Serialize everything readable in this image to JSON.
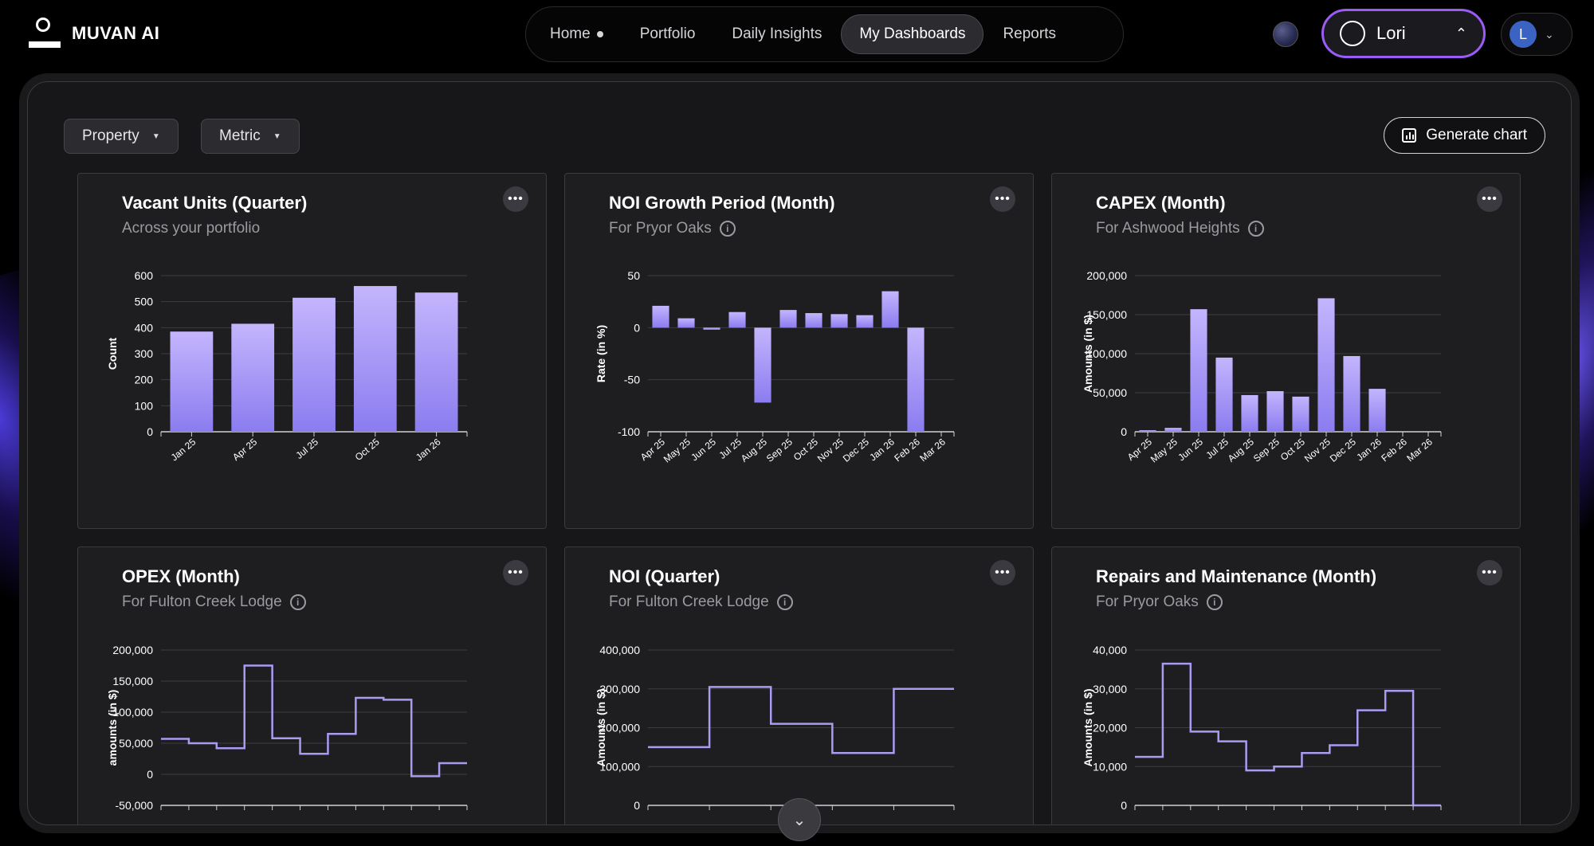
{
  "brand": {
    "name": "MUVAN AI"
  },
  "nav": [
    {
      "label": "Home",
      "dot": true
    },
    {
      "label": "Portfolio"
    },
    {
      "label": "Daily Insights"
    },
    {
      "label": "My Dashboards",
      "active": true
    },
    {
      "label": "Reports"
    }
  ],
  "user": {
    "name": "Lori",
    "avatar_initial": "L"
  },
  "filters": {
    "property": "Property",
    "metric": "Metric"
  },
  "generate_label": "Generate chart",
  "colors": {
    "accent": "#9b5cf6",
    "bar_top": "#c4b5fd",
    "bar_bottom": "#8b7cf0",
    "line": "#a99cf0"
  },
  "cards": [
    {
      "title": "Vacant Units (Quarter)",
      "subtitle": "Across your portfolio",
      "info": false,
      "chart_data": {
        "type": "bar",
        "ylabel": "Count",
        "ylim": [
          0,
          600
        ],
        "yticks": [
          0,
          100,
          200,
          300,
          400,
          500,
          600
        ],
        "categories": [
          "Jan 25",
          "Apr 25",
          "Jul 25",
          "Oct 25",
          "Jan 26"
        ],
        "values": [
          385,
          415,
          515,
          560,
          535
        ]
      }
    },
    {
      "title": "NOI Growth Period (Month)",
      "subtitle": "For Pryor Oaks",
      "info": true,
      "chart_data": {
        "type": "bar",
        "ylabel": "Rate (in %)",
        "ylim": [
          -100,
          50
        ],
        "yticks": [
          -100,
          -50,
          0,
          50
        ],
        "categories": [
          "Apr 25",
          "May 25",
          "Jun 25",
          "Jul 25",
          "Aug 25",
          "Sep 25",
          "Oct 25",
          "Nov 25",
          "Dec 25",
          "Jan 26",
          "Feb 26",
          "Mar 26"
        ],
        "values": [
          21,
          9,
          -2,
          15,
          -72,
          17,
          14,
          13,
          12,
          35,
          -100,
          0
        ]
      }
    },
    {
      "title": "CAPEX (Month)",
      "subtitle": "For Ashwood Heights",
      "info": true,
      "chart_data": {
        "type": "bar",
        "ylabel": "Amounts (in $)",
        "ylim": [
          0,
          200000
        ],
        "yticks": [
          0,
          50000,
          100000,
          150000,
          200000
        ],
        "ytick_labels": [
          "0",
          "50,000",
          "100,000",
          "150,000",
          "200,000"
        ],
        "categories": [
          "Apr 25",
          "May 25",
          "Jun 25",
          "Jul 25",
          "Aug 25",
          "Sep 25",
          "Oct 25",
          "Nov 25",
          "Dec 25",
          "Jan 26",
          "Feb 26",
          "Mar 26"
        ],
        "values": [
          2000,
          5000,
          157000,
          95000,
          47000,
          52000,
          45000,
          171000,
          97000,
          55000,
          0,
          0
        ]
      }
    },
    {
      "title": "OPEX (Month)",
      "subtitle": "For Fulton Creek Lodge",
      "info": true,
      "chart_data": {
        "type": "step",
        "ylabel": "amounts (in $)",
        "ylim": [
          -50000,
          200000
        ],
        "yticks": [
          -50000,
          0,
          50000,
          100000,
          150000,
          200000
        ],
        "ytick_labels": [
          "-50,000",
          "0",
          "50,000",
          "100,000",
          "150,000",
          "200,000"
        ],
        "values": [
          57000,
          50000,
          42000,
          175000,
          58000,
          33000,
          65000,
          123000,
          120000,
          -3000,
          18000
        ]
      }
    },
    {
      "title": "NOI (Quarter)",
      "subtitle": "For Fulton Creek Lodge",
      "info": true,
      "chart_data": {
        "type": "step",
        "ylabel": "Amounts (in $)",
        "ylim": [
          0,
          400000
        ],
        "yticks": [
          0,
          100000,
          200000,
          300000,
          400000
        ],
        "ytick_labels": [
          "0",
          "100,000",
          "200,000",
          "300,000",
          "400,000"
        ],
        "values": [
          150000,
          305000,
          210000,
          135000,
          300000
        ]
      }
    },
    {
      "title": "Repairs and Maintenance (Month)",
      "subtitle": "For Pryor Oaks",
      "info": true,
      "chart_data": {
        "type": "step",
        "ylabel": "Amounts (in $)",
        "ylim": [
          0,
          40000
        ],
        "yticks": [
          0,
          10000,
          20000,
          30000,
          40000
        ],
        "ytick_labels": [
          "0",
          "10,000",
          "20,000",
          "30,000",
          "40,000"
        ],
        "values": [
          12500,
          36500,
          19000,
          16500,
          9000,
          10000,
          13500,
          15500,
          24500,
          29500,
          0
        ]
      }
    }
  ]
}
